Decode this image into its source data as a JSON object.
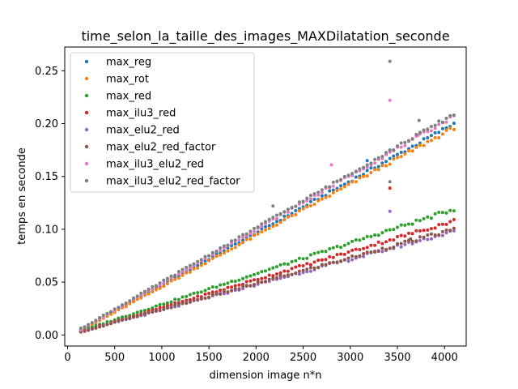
{
  "chart_data": {
    "type": "scatter",
    "title": "time_selon_la_taille_des_images_MAXDilatation_seconde",
    "xlabel": "dimension image n*n",
    "ylabel": "temps en seconde",
    "xlim": [
      -30,
      4230
    ],
    "ylim": [
      -0.0105,
      0.2725
    ],
    "x_ticks": [
      0,
      500,
      1000,
      1500,
      2000,
      2500,
      3000,
      3500,
      4000
    ],
    "x_tick_labels": [
      "0",
      "500",
      "1000",
      "1500",
      "2000",
      "2500",
      "3000",
      "3500",
      "4000"
    ],
    "y_ticks": [
      0.0,
      0.05,
      0.1,
      0.15,
      0.2,
      0.25
    ],
    "y_tick_labels": [
      "0.00",
      "0.05",
      "0.10",
      "0.15",
      "0.20",
      "0.25"
    ],
    "grid": false,
    "legend_position": "top-left",
    "x_range": {
      "start": 140,
      "end": 4100,
      "count": 100
    },
    "series": [
      {
        "name": "max_reg",
        "color": "#1f77b4",
        "start": 0.005,
        "end": 0.2,
        "outliers": [
          {
            "x": 3180,
            "y": 0.165
          },
          {
            "x": 3420,
            "y": 0.175
          }
        ]
      },
      {
        "name": "max_rot",
        "color": "#ff7f0e",
        "start": 0.004,
        "end": 0.196,
        "outliers": []
      },
      {
        "name": "max_red",
        "color": "#2ca02c",
        "start": 0.004,
        "end": 0.119,
        "outliers": []
      },
      {
        "name": "max_ilu3_red",
        "color": "#d62728",
        "start": 0.003,
        "end": 0.108,
        "outliers": [
          {
            "x": 3420,
            "y": 0.139
          }
        ]
      },
      {
        "name": "max_elu2_red",
        "color": "#9467bd",
        "start": 0.003,
        "end": 0.098,
        "outliers": [
          {
            "x": 3420,
            "y": 0.117
          }
        ]
      },
      {
        "name": "max_elu2_red_factor",
        "color": "#8c564b",
        "start": 0.003,
        "end": 0.1,
        "outliers": [
          {
            "x": 3640,
            "y": 0.091
          }
        ]
      },
      {
        "name": "max_ilu3_elu2_red",
        "color": "#e377c2",
        "start": 0.005,
        "end": 0.207,
        "outliers": [
          {
            "x": 3420,
            "y": 0.222
          },
          {
            "x": 2800,
            "y": 0.161
          },
          {
            "x": 3720,
            "y": 0.189
          }
        ]
      },
      {
        "name": "max_ilu3_elu2_red_factor",
        "color": "#7f7f7f",
        "start": 0.006,
        "end": 0.209,
        "outliers": [
          {
            "x": 3420,
            "y": 0.259
          },
          {
            "x": 2180,
            "y": 0.122
          },
          {
            "x": 3730,
            "y": 0.203
          },
          {
            "x": 3420,
            "y": 0.145
          }
        ]
      }
    ]
  }
}
